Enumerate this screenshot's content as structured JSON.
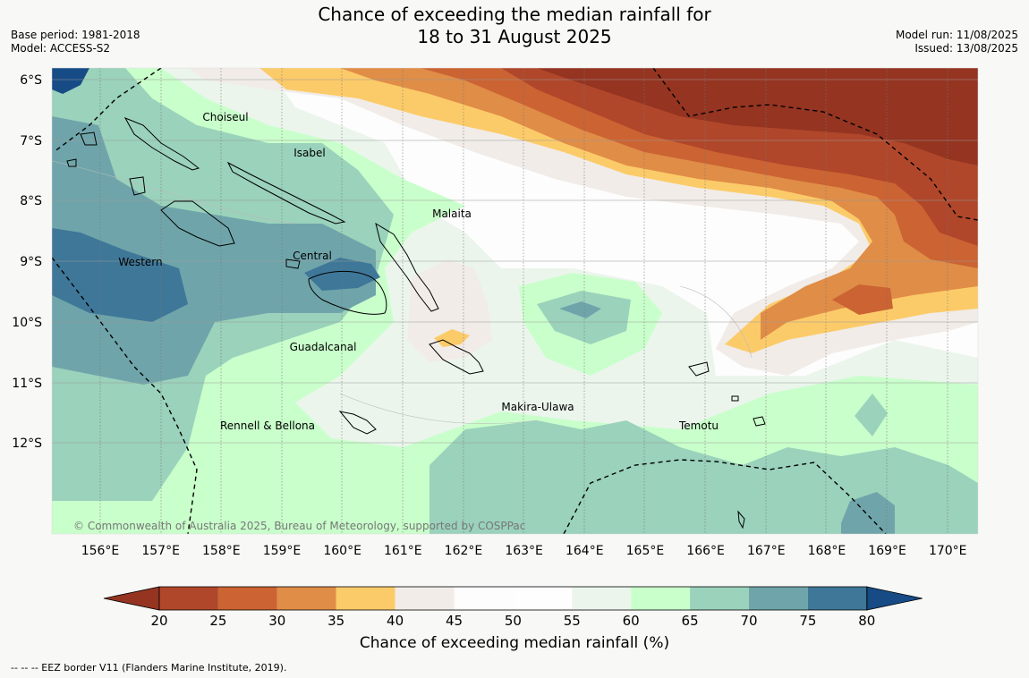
{
  "title_line1": "Chance of exceeding the median rainfall for",
  "title_line2": "18 to 31 August 2025",
  "base_period": "Base period: 1981-2018",
  "model": "Model: ACCESS-S2",
  "model_run": "Model run: 11/08/2025",
  "issued": "Issued: 13/08/2025",
  "copyright": "© Commonwealth of Australia 2025, Bureau of Meteorology, supported by COSPPac",
  "lat_labels": [
    "6°S",
    "7°S",
    "8°S",
    "9°S",
    "10°S",
    "11°S",
    "12°S"
  ],
  "lon_labels": [
    "156°E",
    "157°E",
    "158°E",
    "159°E",
    "160°E",
    "161°E",
    "162°E",
    "163°E",
    "164°E",
    "165°E",
    "166°E",
    "167°E",
    "168°E",
    "169°E",
    "170°E"
  ],
  "regions": [
    "Choiseul",
    "Isabel",
    "Malaita",
    "Western",
    "Central",
    "Guadalcanal",
    "Makira-Ulawa",
    "Temotu",
    "Rennell & Bellona"
  ],
  "colorbar": {
    "ticks": [
      "20",
      "25",
      "30",
      "35",
      "40",
      "45",
      "50",
      "55",
      "60",
      "65",
      "70",
      "75",
      "80"
    ],
    "colors": [
      "#943421",
      "#b0472a",
      "#cb6333",
      "#e08d47",
      "#fccb69",
      "#f1ece8",
      "#fdfdfd",
      "#fefefe",
      "#ebf5ec",
      "#c9ffcb",
      "#9ad2bb",
      "#6fa5aa",
      "#3f7798",
      "#164b85"
    ],
    "label": "Chance of exceeding median rainfall (%)"
  },
  "footer": "--  --  -- EEZ border V11 (Flanders Marine Institute, 2019)."
}
